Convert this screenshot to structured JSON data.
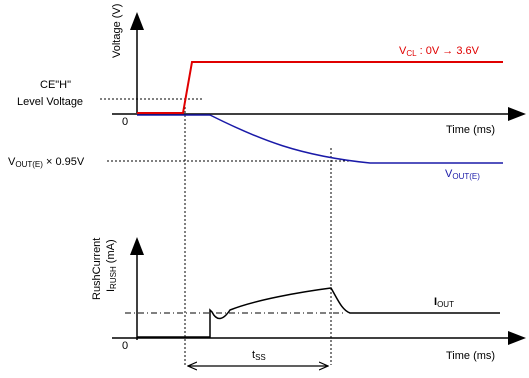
{
  "top": {
    "ylabel": "Voltage (V)",
    "ce_label_line1": "CE\"H\"",
    "ce_label_line2": "Level Voltage",
    "origin": "0",
    "xlabel": "Time (ms)",
    "vcl_main": "V",
    "vcl_sub": "CL",
    "vcl_rest": " : 0V → 3.6V",
    "vout95_main": "V",
    "vout95_sub": "OUT(E)",
    "vout95_rest": " × 0.95V",
    "vout_main": "V",
    "vout_sub": "OUT(E)"
  },
  "bottom": {
    "ylabel1": "RushCurrent",
    "ylabel2_main": "I",
    "ylabel2_sub": "RUSH",
    "ylabel2_rest": " (mA)",
    "origin": "0",
    "xlabel": "Time (ms)",
    "iout_main": "I",
    "iout_sub": "OUT",
    "tss_main": "t",
    "tss_sub": "SS"
  },
  "colors": {
    "vcl": "#e00000",
    "vout": "#1a1aa8",
    "axis": "#000000"
  }
}
